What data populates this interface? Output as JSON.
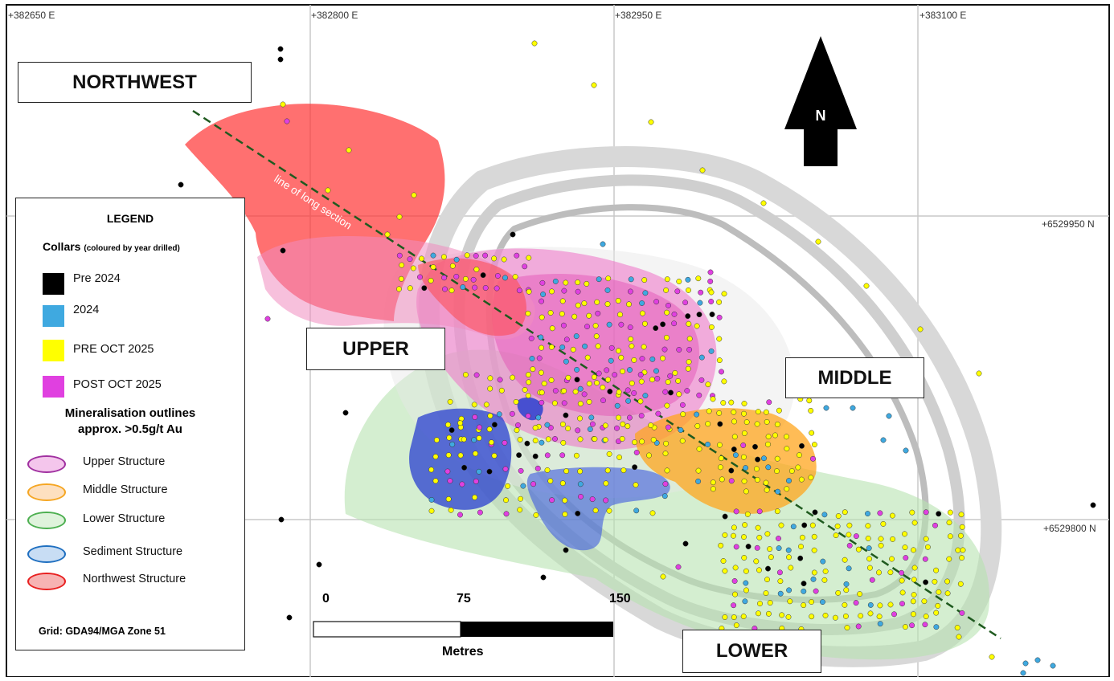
{
  "grid": {
    "eastings": [
      "+382650 E",
      "+382800 E",
      "+382950 E",
      "+383100 E"
    ],
    "northings": [
      "+6529950 N",
      "+6529800 N"
    ],
    "note": "Grid: GDA94/MGA Zone 51"
  },
  "zone_labels": {
    "northwest": "NORTHWEST",
    "upper": "UPPER",
    "middle": "MIDDLE",
    "lower": "LOWER"
  },
  "section_line_label": "line of long section",
  "north_arrow": {
    "label": "N",
    "icon": "north-arrow-icon"
  },
  "legend": {
    "title": "LEGEND",
    "collars_heading": "Collars",
    "collars_note": "(coloured by year drilled)",
    "collars": [
      {
        "label": "Pre 2024",
        "color": "#000000"
      },
      {
        "label": "2024",
        "color": "#3fa9e0"
      },
      {
        "label": "PRE OCT 2025",
        "color": "#ffff00"
      },
      {
        "label": "POST OCT 2025",
        "color": "#e040e0"
      }
    ],
    "mineralisation_heading_1": "Mineralisation outlines",
    "mineralisation_heading_2": "approx. >0.5g/t Au",
    "structures": [
      {
        "label": "Upper Structure",
        "stroke": "#a030a0",
        "fill": "#f4c6ec"
      },
      {
        "label": "Middle Structure",
        "stroke": "#f5a623",
        "fill": "#fde0c0"
      },
      {
        "label": "Lower Structure",
        "stroke": "#4caf50",
        "fill": "#dff3dc"
      },
      {
        "label": "Sediment Structure",
        "stroke": "#1f6fc0",
        "fill": "#c8ddf4"
      },
      {
        "label": "Northwest Structure",
        "stroke": "#e82020",
        "fill": "#f7b3b3"
      }
    ]
  },
  "scale_bar": {
    "ticks": [
      "0",
      "75",
      "150"
    ],
    "unit": "Metres"
  }
}
